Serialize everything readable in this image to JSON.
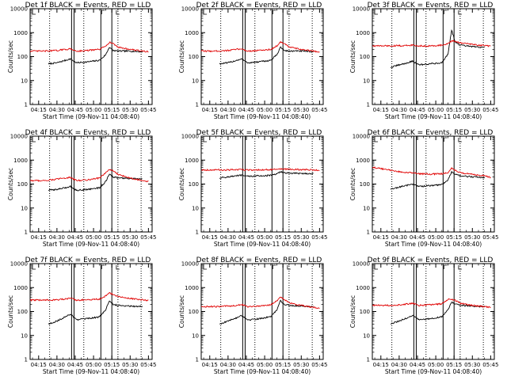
{
  "figure": {
    "xlabel": "Start Time (09-Nov-11 04:08:40)",
    "ylabel": "Counts/sec",
    "xticks": [
      "04:15",
      "04:30",
      "04:45",
      "05:00",
      "05:15",
      "05:30",
      "05:45"
    ],
    "yticks": [
      "1",
      "10",
      "100",
      "1000",
      "10000"
    ],
    "colors": {
      "events": "#000000",
      "lld": "#e00000",
      "axes": "#000000"
    }
  },
  "chart_data": [
    {
      "type": "line",
      "title": "Det 1f BLACK = Events, RED = LLD",
      "xlabel": "Start Time (09-Nov-11 04:08:40)",
      "ylabel": "Counts/sec",
      "yscale": "log",
      "ylim": [
        1,
        10000
      ],
      "xlim": [
        "04:08",
        "05:48"
      ],
      "series": [
        {
          "name": "Events",
          "color": "#000000",
          "x": [
            "04:23",
            "04:30",
            "04:37",
            "04:41",
            "04:46",
            "04:55",
            "05:05",
            "05:10",
            "05:13",
            "05:16",
            "05:20",
            "05:30",
            "05:40"
          ],
          "values": [
            50,
            55,
            70,
            80,
            55,
            60,
            70,
            120,
            250,
            180,
            170,
            170,
            160
          ]
        },
        {
          "name": "LLD",
          "color": "#e00000",
          "x": [
            "04:08",
            "04:20",
            "04:30",
            "04:37",
            "04:41",
            "04:46",
            "04:55",
            "05:05",
            "05:10",
            "05:13",
            "05:16",
            "05:20",
            "05:30",
            "05:40",
            "05:45"
          ],
          "values": [
            170,
            170,
            180,
            200,
            210,
            170,
            180,
            200,
            280,
            400,
            350,
            250,
            200,
            170,
            160
          ]
        }
      ]
    },
    {
      "type": "line",
      "title": "Det 2f BLACK = Events, RED = LLD",
      "xlabel": "Start Time (09-Nov-11 04:08:40)",
      "ylabel": "Counts/sec",
      "yscale": "log",
      "ylim": [
        1,
        10000
      ],
      "xlim": [
        "04:08",
        "05:48"
      ],
      "series": [
        {
          "name": "Events",
          "color": "#000000",
          "x": [
            "04:23",
            "04:30",
            "04:37",
            "04:41",
            "04:46",
            "04:55",
            "05:05",
            "05:10",
            "05:13",
            "05:16",
            "05:20",
            "05:30",
            "05:40"
          ],
          "values": [
            50,
            55,
            70,
            80,
            55,
            60,
            70,
            120,
            250,
            180,
            170,
            170,
            160
          ]
        },
        {
          "name": "LLD",
          "color": "#e00000",
          "x": [
            "04:08",
            "04:20",
            "04:30",
            "04:37",
            "04:41",
            "04:46",
            "04:55",
            "05:05",
            "05:10",
            "05:13",
            "05:16",
            "05:20",
            "05:30",
            "05:40",
            "05:45"
          ],
          "values": [
            170,
            170,
            180,
            200,
            210,
            170,
            180,
            200,
            280,
            400,
            350,
            250,
            200,
            170,
            160
          ]
        }
      ]
    },
    {
      "type": "line",
      "title": "Det 3f BLACK = Events, RED = LLD",
      "xlabel": "Start Time (09-Nov-11 04:08:40)",
      "ylabel": "Counts/sec",
      "yscale": "log",
      "ylim": [
        1,
        10000
      ],
      "xlim": [
        "04:08",
        "05:48"
      ],
      "series": [
        {
          "name": "Events",
          "color": "#000000",
          "x": [
            "04:23",
            "04:30",
            "04:37",
            "04:41",
            "04:46",
            "04:55",
            "05:05",
            "05:10",
            "05:13",
            "05:16",
            "05:20",
            "05:30",
            "05:40"
          ],
          "values": [
            35,
            45,
            55,
            65,
            45,
            50,
            55,
            130,
            1300,
            400,
            300,
            260,
            240
          ]
        },
        {
          "name": "LLD",
          "color": "#e00000",
          "x": [
            "04:08",
            "04:20",
            "04:30",
            "04:37",
            "04:41",
            "04:46",
            "04:55",
            "05:05",
            "05:10",
            "05:13",
            "05:16",
            "05:20",
            "05:30",
            "05:40",
            "05:45"
          ],
          "values": [
            280,
            280,
            285,
            290,
            300,
            280,
            280,
            300,
            340,
            450,
            430,
            380,
            320,
            290,
            270
          ]
        }
      ]
    },
    {
      "type": "line",
      "title": "Det 4f BLACK = Events, RED = LLD",
      "xlabel": "Start Time (09-Nov-11 04:08:40)",
      "ylabel": "Counts/sec",
      "yscale": "log",
      "ylim": [
        1,
        10000
      ],
      "xlim": [
        "04:08",
        "05:48"
      ],
      "series": [
        {
          "name": "Events",
          "color": "#000000",
          "x": [
            "04:23",
            "04:30",
            "04:37",
            "04:41",
            "04:46",
            "04:55",
            "05:05",
            "05:10",
            "05:13",
            "05:16",
            "05:20",
            "05:30",
            "05:40"
          ],
          "values": [
            55,
            60,
            70,
            80,
            55,
            60,
            70,
            130,
            250,
            200,
            180,
            170,
            160
          ]
        },
        {
          "name": "LLD",
          "color": "#e00000",
          "x": [
            "04:08",
            "04:20",
            "04:30",
            "04:37",
            "04:41",
            "04:46",
            "04:55",
            "05:05",
            "05:10",
            "05:13",
            "05:16",
            "05:20",
            "05:30",
            "05:40",
            "05:45"
          ],
          "values": [
            140,
            140,
            160,
            180,
            190,
            140,
            150,
            180,
            300,
            400,
            360,
            250,
            180,
            140,
            130
          ]
        }
      ]
    },
    {
      "type": "line",
      "title": "Det 5f BLACK = Events, RED = LLD",
      "xlabel": "Start Time (09-Nov-11 04:08:40)",
      "ylabel": "Counts/sec",
      "yscale": "log",
      "ylim": [
        1,
        10000
      ],
      "xlim": [
        "04:08",
        "05:48"
      ],
      "series": [
        {
          "name": "Events",
          "color": "#000000",
          "x": [
            "04:23",
            "04:30",
            "04:37",
            "04:41",
            "04:46",
            "04:55",
            "05:05",
            "05:10",
            "05:13",
            "05:16",
            "05:20",
            "05:30",
            "05:40"
          ],
          "values": [
            180,
            200,
            220,
            230,
            210,
            220,
            230,
            260,
            330,
            300,
            280,
            280,
            270
          ]
        },
        {
          "name": "LLD",
          "color": "#e00000",
          "x": [
            "04:08",
            "04:20",
            "04:30",
            "04:37",
            "04:41",
            "04:46",
            "04:55",
            "05:05",
            "05:10",
            "05:13",
            "05:16",
            "05:20",
            "05:30",
            "05:40",
            "05:45"
          ],
          "values": [
            390,
            390,
            390,
            395,
            400,
            390,
            390,
            400,
            410,
            430,
            420,
            410,
            400,
            390,
            380
          ]
        }
      ]
    },
    {
      "type": "line",
      "title": "Det 6f BLACK = Events, RED = LLD",
      "xlabel": "Start Time (09-Nov-11 04:08:40)",
      "ylabel": "Counts/sec",
      "yscale": "log",
      "ylim": [
        1,
        10000
      ],
      "xlim": [
        "04:08",
        "05:48"
      ],
      "series": [
        {
          "name": "Events",
          "color": "#000000",
          "x": [
            "04:23",
            "04:30",
            "04:37",
            "04:41",
            "04:46",
            "04:55",
            "05:05",
            "05:10",
            "05:13",
            "05:16",
            "05:20",
            "05:30",
            "05:40"
          ],
          "values": [
            60,
            75,
            90,
            100,
            80,
            85,
            95,
            150,
            320,
            250,
            220,
            200,
            190
          ]
        },
        {
          "name": "LLD",
          "color": "#e00000",
          "x": [
            "04:08",
            "04:20",
            "04:30",
            "04:37",
            "04:41",
            "04:46",
            "04:55",
            "05:05",
            "05:10",
            "05:13",
            "05:16",
            "05:20",
            "05:30",
            "05:40",
            "05:45"
          ],
          "values": [
            500,
            400,
            330,
            300,
            290,
            270,
            260,
            270,
            300,
            450,
            380,
            300,
            250,
            220,
            190
          ]
        }
      ]
    },
    {
      "type": "line",
      "title": "Det 7f BLACK = Events, RED = LLD",
      "xlabel": "Start Time (09-Nov-11 04:08:40)",
      "ylabel": "Counts/sec",
      "yscale": "log",
      "ylim": [
        1,
        10000
      ],
      "xlim": [
        "04:08",
        "05:48"
      ],
      "series": [
        {
          "name": "Events",
          "color": "#000000",
          "x": [
            "04:23",
            "04:30",
            "04:37",
            "04:41",
            "04:46",
            "04:55",
            "05:05",
            "05:10",
            "05:13",
            "05:16",
            "05:20",
            "05:30",
            "05:40"
          ],
          "values": [
            30,
            40,
            60,
            80,
            45,
            50,
            60,
            120,
            280,
            200,
            180,
            170,
            160
          ]
        },
        {
          "name": "LLD",
          "color": "#e00000",
          "x": [
            "04:08",
            "04:20",
            "04:30",
            "04:37",
            "04:41",
            "04:46",
            "04:55",
            "05:05",
            "05:10",
            "05:13",
            "05:16",
            "05:20",
            "05:30",
            "05:40",
            "05:45"
          ],
          "values": [
            300,
            300,
            310,
            330,
            350,
            300,
            310,
            330,
            450,
            600,
            520,
            420,
            350,
            310,
            290
          ]
        }
      ]
    },
    {
      "type": "line",
      "title": "Det 8f BLACK = Events, RED = LLD",
      "xlabel": "Start Time (09-Nov-11 04:08:40)",
      "ylabel": "Counts/sec",
      "yscale": "log",
      "ylim": [
        1,
        10000
      ],
      "xlim": [
        "04:08",
        "05:48"
      ],
      "series": [
        {
          "name": "Events",
          "color": "#000000",
          "x": [
            "04:23",
            "04:30",
            "04:37",
            "04:41",
            "04:46",
            "04:55",
            "05:05",
            "05:10",
            "05:13",
            "05:16",
            "05:20",
            "05:30",
            "05:40"
          ],
          "values": [
            30,
            40,
            55,
            70,
            45,
            50,
            60,
            120,
            280,
            200,
            180,
            170,
            160
          ]
        },
        {
          "name": "LLD",
          "color": "#e00000",
          "x": [
            "04:08",
            "04:20",
            "04:30",
            "04:37",
            "04:41",
            "04:46",
            "04:55",
            "05:05",
            "05:10",
            "05:13",
            "05:16",
            "05:20",
            "05:30",
            "05:40",
            "05:45"
          ],
          "values": [
            160,
            160,
            170,
            180,
            200,
            160,
            170,
            190,
            280,
            400,
            330,
            230,
            180,
            150,
            140
          ]
        }
      ]
    },
    {
      "type": "line",
      "title": "Det 9f BLACK = Events, RED = LLD",
      "xlabel": "Start Time (09-Nov-11 04:08:40)",
      "ylabel": "Counts/sec",
      "yscale": "log",
      "ylim": [
        1,
        10000
      ],
      "xlim": [
        "04:08",
        "05:48"
      ],
      "series": [
        {
          "name": "Events",
          "color": "#000000",
          "x": [
            "04:23",
            "04:30",
            "04:37",
            "04:41",
            "04:46",
            "04:55",
            "05:05",
            "05:10",
            "05:13",
            "05:16",
            "05:20",
            "05:30",
            "05:40"
          ],
          "values": [
            30,
            40,
            55,
            70,
            45,
            50,
            60,
            120,
            250,
            200,
            180,
            170,
            160
          ]
        },
        {
          "name": "LLD",
          "color": "#e00000",
          "x": [
            "04:08",
            "04:20",
            "04:30",
            "04:37",
            "04:41",
            "04:46",
            "04:55",
            "05:05",
            "05:10",
            "05:13",
            "05:16",
            "05:20",
            "05:30",
            "05:40",
            "05:45"
          ],
          "values": [
            180,
            180,
            190,
            210,
            220,
            180,
            190,
            210,
            320,
            320,
            290,
            220,
            180,
            160,
            150
          ]
        }
      ]
    }
  ]
}
